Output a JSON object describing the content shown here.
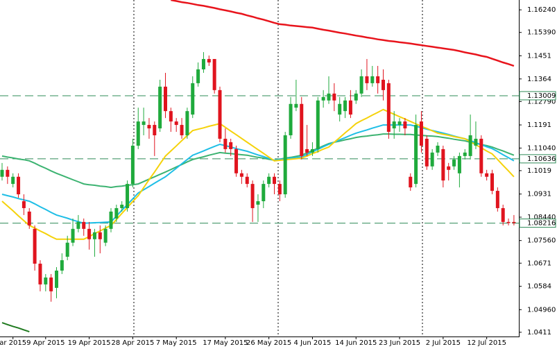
{
  "chart_data": {
    "type": "candlestick",
    "categories": [
      null,
      null,
      "ar 2015",
      null,
      null,
      null,
      null,
      null,
      "9 Apr 2015",
      null,
      null,
      null,
      null,
      null,
      null,
      null,
      "19 Apr 2015",
      null,
      null,
      null,
      null,
      null,
      null,
      null,
      "28 Apr 2015",
      null,
      null,
      null,
      null,
      null,
      null,
      null,
      "7 May 2015",
      null,
      null,
      null,
      null,
      null,
      null,
      null,
      null,
      "17 May 2015",
      null,
      null,
      null,
      null,
      null,
      null,
      null,
      "26 May 2015",
      null,
      null,
      null,
      null,
      null,
      null,
      null,
      "4 Jun 2015",
      null,
      null,
      null,
      null,
      null,
      null,
      null,
      "14 Jun 2015",
      null,
      null,
      null,
      null,
      null,
      null,
      null,
      "23 Jun 2015",
      null,
      null,
      null,
      null,
      null,
      null,
      null,
      "2 Jul 2015",
      null,
      null,
      null,
      null,
      null,
      null,
      null,
      "12 Jul 2015",
      null,
      null,
      null,
      null,
      null
    ],
    "open": [
      1.0996,
      1.1022,
      1.0969,
      1.0996,
      1.0904,
      1.0865,
      1.08,
      1.0669,
      1.0591,
      1.0617,
      1.0578,
      1.0643,
      1.0695,
      1.0748,
      1.08,
      1.0826,
      1.08,
      1.0761,
      1.0787,
      1.0748,
      1.08,
      1.0839,
      1.0878,
      1.0878,
      1.0969,
      1.1113,
      1.1191,
      1.1191,
      1.1191,
      1.1178,
      1.1335,
      1.1243,
      1.1204,
      1.1191,
      1.1152,
      1.123,
      1.1348,
      1.14,
      1.1439,
      1.1439,
      1.1322,
      1.1139,
      1.1126,
      1.11,
      1.1009,
      1.0996,
      1.0969,
      1.0891,
      1.0904,
      1.0969,
      1.0996,
      1.0969,
      1.093,
      1.1152,
      1.1256,
      1.127,
      1.11,
      1.1087,
      1.11,
      1.1283,
      1.1283,
      1.1309,
      1.123,
      1.1243,
      1.1283,
      1.1283,
      1.1309,
      1.1374,
      1.1348,
      1.1374,
      1.1361,
      1.1348,
      1.1178,
      1.1191,
      1.1204,
      1.0996,
      1.0969,
      1.1204,
      1.1139,
      1.1035,
      1.1087,
      1.11,
      1.1035,
      1.1035,
      1.1009,
      1.1074,
      1.1074,
      1.1113,
      1.1139,
      1.1009,
      1.1009,
      1.0943,
      1.0878,
      1.0826,
      1.0826
    ],
    "high": [
      1.1048,
      1.1035,
      1.1009,
      1.1009,
      1.093,
      1.0878,
      1.0813,
      1.0682,
      1.063,
      1.063,
      1.0656,
      1.0708,
      1.0774,
      1.0839,
      1.0852,
      1.0839,
      1.0826,
      1.08,
      1.0813,
      1.0813,
      1.0878,
      1.0891,
      1.0904,
      1.0982,
      1.1139,
      1.1256,
      1.1256,
      1.1217,
      1.1204,
      1.1361,
      1.1387,
      1.1256,
      1.1217,
      1.1217,
      1.1256,
      1.1374,
      1.1426,
      1.1465,
      1.1452,
      1.1439,
      1.1335,
      1.1178,
      1.1139,
      1.1113,
      1.1022,
      1.1009,
      1.0982,
      1.093,
      1.0982,
      1.1009,
      1.1009,
      1.0982,
      1.1165,
      1.1296,
      1.1361,
      1.1296,
      1.1191,
      1.1126,
      1.1296,
      1.1322,
      1.1374,
      1.1348,
      1.1296,
      1.1296,
      1.1322,
      1.1322,
      1.14,
      1.1439,
      1.1413,
      1.1413,
      1.14,
      1.1361,
      1.1243,
      1.1217,
      1.1217,
      1.1009,
      1.123,
      1.1243,
      1.1152,
      1.11,
      1.1126,
      1.1113,
      1.1048,
      1.1074,
      1.1087,
      1.11,
      1.123,
      1.1204,
      1.1152,
      1.1022,
      1.1022,
      1.0956,
      1.0891,
      1.0839,
      1.0852
    ],
    "low": [
      1.0982,
      1.0969,
      1.0956,
      1.0917,
      1.0852,
      1.08,
      1.0643,
      1.0565,
      1.0565,
      1.0526,
      1.0539,
      1.063,
      1.0682,
      1.0735,
      1.0787,
      1.0774,
      1.0722,
      1.0695,
      1.0708,
      1.0735,
      1.0787,
      1.0826,
      1.0865,
      1.0865,
      1.0956,
      1.11,
      1.1152,
      1.1139,
      1.1074,
      1.1165,
      1.1217,
      1.1165,
      1.1165,
      1.1139,
      1.1139,
      1.1217,
      1.1335,
      1.1387,
      1.1413,
      1.1309,
      1.1126,
      1.1087,
      1.1074,
      1.0996,
      1.0969,
      1.0956,
      1.0826,
      1.0826,
      1.0878,
      1.0956,
      1.093,
      1.0904,
      1.0917,
      1.1139,
      1.1243,
      1.1061,
      1.1074,
      1.1074,
      1.1087,
      1.1256,
      1.127,
      1.1243,
      1.1204,
      1.1217,
      1.1217,
      1.127,
      1.1296,
      1.1322,
      1.1335,
      1.1309,
      1.1283,
      1.1139,
      1.1139,
      1.1165,
      1.1152,
      1.0943,
      1.0956,
      1.1087,
      1.1022,
      1.1022,
      1.1074,
      1.0956,
      1.0982,
      1.1022,
      1.0956,
      1.1061,
      1.1061,
      1.11,
      1.0996,
      1.0982,
      1.093,
      1.0865,
      1.0813,
      1.0813,
      1.0813
    ],
    "close": [
      1.1022,
      1.0996,
      1.0996,
      1.093,
      1.0878,
      1.0813,
      1.0669,
      1.0591,
      1.0617,
      1.0565,
      1.0643,
      1.0682,
      1.0748,
      1.08,
      1.0826,
      1.08,
      1.0761,
      1.0787,
      1.0761,
      1.08,
      1.0865,
      1.0878,
      1.0891,
      1.0969,
      1.1113,
      1.1204,
      1.1204,
      1.1178,
      1.1152,
      1.1335,
      1.1243,
      1.1204,
      1.1191,
      1.1152,
      1.1243,
      1.1348,
      1.14,
      1.1439,
      1.1426,
      1.1322,
      1.1139,
      1.11,
      1.11,
      1.1009,
      1.0996,
      1.0969,
      1.0878,
      1.0904,
      1.0969,
      1.0996,
      1.0969,
      1.093,
      1.1152,
      1.127,
      1.127,
      1.1074,
      1.1087,
      1.11,
      1.1283,
      1.1296,
      1.1309,
      1.1283,
      1.127,
      1.1283,
      1.123,
      1.1309,
      1.1374,
      1.1348,
      1.1374,
      1.1348,
      1.1322,
      1.1165,
      1.1204,
      1.1204,
      1.1178,
      1.0956,
      1.1191,
      1.1113,
      1.1035,
      1.1087,
      1.1113,
      1.0982,
      1.1022,
      1.1061,
      1.1074,
      1.1087,
      1.1152,
      1.1139,
      1.1009,
      1.0996,
      1.0943,
      1.0878,
      1.0826,
      1.0822,
      1.0822
    ],
    "up_color": "#1faa3c",
    "down_color": "#e0141e",
    "series": [
      {
        "color": "#e8141c",
        "values": [
          null,
          null,
          null,
          null,
          null,
          null,
          null,
          null,
          null,
          null,
          null,
          null,
          null,
          null,
          null,
          null,
          null,
          null,
          null,
          null,
          null,
          null,
          null,
          null,
          null,
          null,
          null,
          null,
          null,
          null,
          null,
          1.1661,
          1.1657,
          1.1653,
          1.165,
          1.1646,
          1.1642,
          1.1639,
          1.1635,
          1.1631,
          1.1626,
          1.1622,
          1.1618,
          1.1613,
          1.1609,
          1.1603,
          1.1598,
          1.1592,
          1.1587,
          1.1581,
          1.1575,
          1.157,
          1.1568,
          1.1565,
          1.1563,
          1.1561,
          1.1559,
          1.1557,
          1.1553,
          1.1549,
          1.1546,
          1.1542,
          1.1538,
          1.1535,
          1.1531,
          1.1527,
          1.1524,
          1.152,
          1.1517,
          1.1513,
          1.151,
          1.1507,
          1.1505,
          1.1502,
          1.15,
          1.1497,
          1.1494,
          1.1491,
          1.1488,
          1.1485,
          1.1482,
          1.1479,
          1.1476,
          1.1473,
          1.1469,
          1.1464,
          1.146,
          1.1456,
          1.1451,
          1.1447,
          1.144,
          1.1433,
          1.1426,
          1.142,
          1.1413
        ]
      },
      {
        "color": "#3cb371",
        "values": [
          1.1074,
          1.107,
          1.1067,
          1.1063,
          1.106,
          1.1056,
          1.1047,
          1.1037,
          1.1028,
          1.1018,
          1.1009,
          1.1001,
          1.0993,
          1.0985,
          1.0977,
          1.0969,
          1.0966,
          1.0964,
          1.0961,
          1.0959,
          1.0956,
          1.0959,
          1.0961,
          1.0964,
          1.0966,
          1.0969,
          1.0978,
          1.0987,
          1.0996,
          1.1005,
          1.1014,
          1.1023,
          1.1033,
          1.1042,
          1.1052,
          1.1061,
          1.1066,
          1.1071,
          1.1077,
          1.1082,
          1.1087,
          1.1085,
          1.1083,
          1.1081,
          1.1079,
          1.1077,
          1.1073,
          1.1069,
          1.1066,
          1.1062,
          1.1058,
          1.1062,
          1.1066,
          1.1069,
          1.1073,
          1.1077,
          1.1086,
          1.1095,
          1.1103,
          1.1112,
          1.1121,
          1.1126,
          1.113,
          1.1135,
          1.1139,
          1.1144,
          1.1147,
          1.1149,
          1.1152,
          1.1154,
          1.1157,
          1.1157,
          1.1156,
          1.1156,
          1.1155,
          1.1155,
          1.1153,
          1.1152,
          1.115,
          1.1149,
          1.1147,
          1.1144,
          1.1141,
          1.1137,
          1.1134,
          1.1131,
          1.1126,
          1.1122,
          1.1117,
          1.1113,
          1.1108,
          1.11,
          1.1093,
          1.1085,
          1.1077
        ]
      },
      {
        "color": "#1ebee6",
        "values": [
          1.093,
          1.0925,
          1.092,
          1.0914,
          1.0909,
          1.0904,
          1.0894,
          1.0883,
          1.0873,
          1.0862,
          1.0852,
          1.0846,
          1.084,
          1.0833,
          1.0827,
          1.0821,
          1.0822,
          1.0823,
          1.0824,
          1.0825,
          1.0826,
          1.0848,
          1.087,
          1.0891,
          1.0913,
          1.0935,
          1.0947,
          1.0959,
          1.0972,
          1.0984,
          1.0996,
          1.1012,
          1.1028,
          1.1045,
          1.1061,
          1.1077,
          1.1085,
          1.1093,
          1.1102,
          1.111,
          1.1118,
          1.1113,
          1.1108,
          1.1102,
          1.1097,
          1.1092,
          1.1085,
          1.1078,
          1.1072,
          1.1065,
          1.1058,
          1.1061,
          1.1063,
          1.1066,
          1.1068,
          1.1071,
          1.108,
          1.109,
          1.1099,
          1.1109,
          1.1118,
          1.1126,
          1.1135,
          1.1143,
          1.1152,
          1.116,
          1.1166,
          1.1172,
          1.1179,
          1.1185,
          1.1191,
          1.1191,
          1.1191,
          1.1191,
          1.1191,
          1.1191,
          1.1186,
          1.1181,
          1.1175,
          1.117,
          1.1165,
          1.116,
          1.1155,
          1.1149,
          1.1144,
          1.1139,
          1.1132,
          1.1124,
          1.1117,
          1.1109,
          1.1102,
          1.1091,
          1.1079,
          1.1068,
          1.1056
        ]
      },
      {
        "color": "#f5d20a",
        "values": [
          1.0904,
          1.0886,
          1.0868,
          1.0849,
          1.0831,
          1.0813,
          1.0803,
          1.0792,
          1.0782,
          1.0771,
          1.0761,
          1.0761,
          1.0761,
          1.0761,
          1.0761,
          1.0761,
          1.0771,
          1.0782,
          1.0792,
          1.0803,
          1.0813,
          1.0835,
          1.0858,
          1.088,
          1.0903,
          1.0925,
          1.0955,
          1.0985,
          1.1014,
          1.1044,
          1.1074,
          1.1093,
          1.1112,
          1.1132,
          1.1151,
          1.117,
          1.1175,
          1.118,
          1.1186,
          1.1191,
          1.1196,
          1.1182,
          1.1168,
          1.1154,
          1.114,
          1.1126,
          1.1112,
          1.1098,
          1.1084,
          1.107,
          1.1056,
          1.1058,
          1.106,
          1.1062,
          1.1064,
          1.1066,
          1.1074,
          1.1083,
          1.1091,
          1.11,
          1.1108,
          1.1126,
          1.1143,
          1.1161,
          1.1178,
          1.1196,
          1.1207,
          1.1217,
          1.1228,
          1.1238,
          1.1249,
          1.124,
          1.1231,
          1.1222,
          1.1213,
          1.1204,
          1.1195,
          1.1186,
          1.1178,
          1.1169,
          1.116,
          1.1156,
          1.1152,
          1.1147,
          1.1143,
          1.1139,
          1.1128,
          1.1116,
          1.1105,
          1.1093,
          1.1082,
          1.1061,
          1.1039,
          1.1018,
          1.0996
        ]
      },
      {
        "color": "#1f7a1f",
        "values": [
          1.0447,
          1.044,
          1.0433,
          1.0427,
          1.042,
          1.0413,
          null,
          null,
          null,
          null,
          null,
          null,
          null,
          null,
          null,
          null,
          null,
          null,
          null,
          null,
          null,
          null,
          null,
          null,
          null,
          null,
          null,
          null,
          null,
          null,
          null,
          null,
          null,
          null,
          null,
          null,
          null,
          null,
          null,
          null,
          null,
          null,
          null,
          null,
          null,
          null,
          null,
          null,
          null,
          null,
          null,
          null,
          null,
          null,
          null,
          null,
          null,
          null,
          null,
          null,
          null,
          null,
          null,
          null,
          null,
          null,
          null,
          null,
          null,
          null,
          null,
          null,
          null,
          null,
          null,
          null,
          null,
          null,
          null,
          null,
          null,
          null,
          null,
          null,
          null,
          null,
          null,
          null,
          null,
          null,
          null,
          null,
          null,
          null,
          null
        ]
      }
    ],
    "price_levels": [
      1.13009,
      1.10636,
      1.08216
    ],
    "level_color": "#2e8b57",
    "ylim": [
      1.0395,
      1.1661
    ],
    "yticks": [
      {
        "value": 1.1624,
        "label": "1.16240"
      },
      {
        "value": 1.1539,
        "label": "1.15390"
      },
      1.1451,
      1.1364,
      {
        "value": 1.1279,
        "label": "1.12790"
      },
      1.1191,
      {
        "value": 1.1104,
        "label": "1.11040"
      },
      1.1019,
      1.0931,
      {
        "value": 1.0844,
        "label": "1.08440"
      },
      {
        "value": 1.0756,
        "label": "1.07560"
      },
      1.0671,
      1.0584,
      {
        "value": 1.0496,
        "label": "1.04960"
      },
      1.0411
    ]
  }
}
